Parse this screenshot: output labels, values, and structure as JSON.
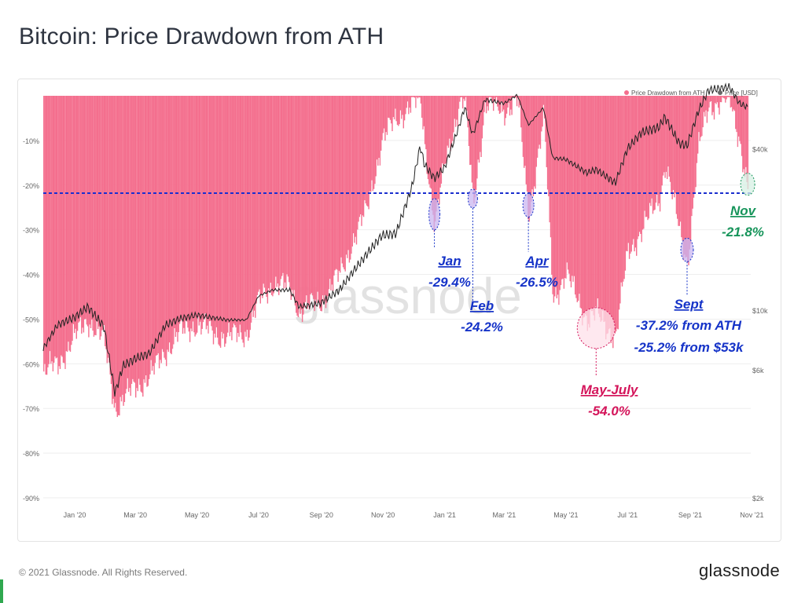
{
  "header": {
    "title": "Bitcoin: Price Drawdown from ATH"
  },
  "footer": {
    "copyright": "© 2021 Glassnode. All Rights Reserved.",
    "logo": "glassnode"
  },
  "watermark": "glassnode",
  "colors": {
    "drawdown": "#f46f8e",
    "price": "#222222",
    "reference_line": "#1a2ecf",
    "blue_text": "#1533c8",
    "red_text": "#d4145a",
    "green_text": "#16945a"
  },
  "chart_data": {
    "type": "area",
    "title": "Bitcoin: Price Drawdown from ATH",
    "legend": {
      "placement": "top-right",
      "items": [
        "Price Drawdown from ATH",
        "Price [USD]"
      ]
    },
    "x_tick_labels": [
      "Jan '20",
      "Mar '20",
      "May '20",
      "Jul '20",
      "Sep '20",
      "Nov '20",
      "Jan '21",
      "Mar '21",
      "May '21",
      "Jul '21",
      "Sep '21",
      "Nov '21"
    ],
    "y_left": {
      "ticks": [
        "-10%",
        "-20%",
        "-30%",
        "-40%",
        "-50%",
        "-60%",
        "-70%",
        "-80%",
        "-90%"
      ],
      "range": [
        -90,
        0
      ]
    },
    "y_right": {
      "scale": "log",
      "ticks": [
        "$40k",
        "$10k",
        "$6k",
        "$2k"
      ],
      "range": [
        2000,
        63000
      ]
    },
    "reference_line": {
      "value": -21.8,
      "style": "dashed"
    },
    "series": [
      {
        "name": "Price Drawdown from ATH",
        "unit": "%",
        "points": [
          [
            "2020-01-01",
            -62
          ],
          [
            "2020-01-15",
            -60
          ],
          [
            "2020-02-01",
            -54
          ],
          [
            "2020-02-14",
            -50
          ],
          [
            "2020-03-01",
            -55
          ],
          [
            "2020-03-12",
            -70
          ],
          [
            "2020-03-20",
            -68
          ],
          [
            "2020-04-01",
            -65
          ],
          [
            "2020-04-15",
            -63
          ],
          [
            "2020-05-01",
            -57
          ],
          [
            "2020-05-15",
            -53
          ],
          [
            "2020-06-01",
            -51
          ],
          [
            "2020-06-15",
            -53
          ],
          [
            "2020-07-01",
            -54
          ],
          [
            "2020-07-20",
            -53
          ],
          [
            "2020-08-01",
            -46
          ],
          [
            "2020-08-15",
            -42
          ],
          [
            "2020-09-01",
            -43
          ],
          [
            "2020-09-10",
            -48
          ],
          [
            "2020-10-01",
            -46
          ],
          [
            "2020-10-20",
            -40
          ],
          [
            "2020-11-01",
            -33
          ],
          [
            "2020-11-15",
            -26
          ],
          [
            "2020-12-01",
            -10
          ],
          [
            "2020-12-15",
            -5
          ],
          [
            "2020-12-31",
            -2
          ],
          [
            "2021-01-08",
            -1
          ],
          [
            "2021-01-12",
            -10
          ],
          [
            "2021-01-22",
            -29.4
          ],
          [
            "2021-02-01",
            -15
          ],
          [
            "2021-02-15",
            -2
          ],
          [
            "2021-02-21",
            -1
          ],
          [
            "2021-03-01",
            -24.2
          ],
          [
            "2021-03-13",
            -2
          ],
          [
            "2021-04-01",
            -3
          ],
          [
            "2021-04-14",
            -1
          ],
          [
            "2021-04-25",
            -26.5
          ],
          [
            "2021-05-10",
            -5
          ],
          [
            "2021-05-19",
            -45
          ],
          [
            "2021-06-01",
            -40
          ],
          [
            "2021-06-22",
            -50
          ],
          [
            "2021-07-01",
            -49
          ],
          [
            "2021-07-20",
            -54.0
          ],
          [
            "2021-08-01",
            -35
          ],
          [
            "2021-08-15",
            -30
          ],
          [
            "2021-09-01",
            -23
          ],
          [
            "2021-09-07",
            -15
          ],
          [
            "2021-09-21",
            -30
          ],
          [
            "2021-09-29",
            -37.2
          ],
          [
            "2021-10-10",
            -12
          ],
          [
            "2021-10-20",
            -2
          ],
          [
            "2021-11-10",
            -1
          ],
          [
            "2021-11-20",
            -10
          ],
          [
            "2021-11-28",
            -21.8
          ]
        ]
      },
      {
        "name": "Price [USD]",
        "unit": "USD",
        "points": [
          [
            "2020-01-01",
            7200
          ],
          [
            "2020-01-15",
            8800
          ],
          [
            "2020-02-01",
            9400
          ],
          [
            "2020-02-14",
            10300
          ],
          [
            "2020-03-01",
            8700
          ],
          [
            "2020-03-12",
            4900
          ],
          [
            "2020-03-20",
            6200
          ],
          [
            "2020-04-01",
            6600
          ],
          [
            "2020-04-15",
            6900
          ],
          [
            "2020-05-01",
            8800
          ],
          [
            "2020-05-15",
            9300
          ],
          [
            "2020-06-01",
            9600
          ],
          [
            "2020-06-15",
            9400
          ],
          [
            "2020-07-01",
            9200
          ],
          [
            "2020-07-20",
            9200
          ],
          [
            "2020-08-01",
            11300
          ],
          [
            "2020-08-15",
            11900
          ],
          [
            "2020-09-01",
            11900
          ],
          [
            "2020-09-10",
            10300
          ],
          [
            "2020-10-01",
            10600
          ],
          [
            "2020-10-20",
            11900
          ],
          [
            "2020-11-01",
            13700
          ],
          [
            "2020-11-15",
            16000
          ],
          [
            "2020-12-01",
            19000
          ],
          [
            "2020-12-15",
            19300
          ],
          [
            "2020-12-31",
            29000
          ],
          [
            "2021-01-08",
            41000
          ],
          [
            "2021-01-12",
            35000
          ],
          [
            "2021-01-22",
            31000
          ],
          [
            "2021-02-01",
            34000
          ],
          [
            "2021-02-15",
            48000
          ],
          [
            "2021-02-21",
            57000
          ],
          [
            "2021-03-01",
            45000
          ],
          [
            "2021-03-13",
            61000
          ],
          [
            "2021-04-01",
            59000
          ],
          [
            "2021-04-14",
            63500
          ],
          [
            "2021-04-25",
            49000
          ],
          [
            "2021-05-10",
            57000
          ],
          [
            "2021-05-19",
            37000
          ],
          [
            "2021-06-01",
            36500
          ],
          [
            "2021-06-22",
            32500
          ],
          [
            "2021-07-01",
            33500
          ],
          [
            "2021-07-20",
            29800
          ],
          [
            "2021-08-01",
            40000
          ],
          [
            "2021-08-15",
            46000
          ],
          [
            "2021-09-01",
            48000
          ],
          [
            "2021-09-07",
            52600
          ],
          [
            "2021-09-21",
            42000
          ],
          [
            "2021-09-29",
            41000
          ],
          [
            "2021-10-10",
            55000
          ],
          [
            "2021-10-20",
            66000
          ],
          [
            "2021-11-10",
            68000
          ],
          [
            "2021-11-20",
            59000
          ],
          [
            "2021-11-28",
            57000
          ]
        ]
      }
    ],
    "annotations": [
      {
        "id": "jan",
        "date": "2021-01-22",
        "value": -29.4,
        "label": "Jan",
        "detail": "-29.4%",
        "color": "blue"
      },
      {
        "id": "feb",
        "date": "2021-03-01",
        "value": -24.2,
        "label": "Feb",
        "detail": "-24.2%",
        "color": "blue"
      },
      {
        "id": "apr",
        "date": "2021-04-25",
        "value": -26.5,
        "label": "Apr",
        "detail": "-26.5%",
        "color": "blue"
      },
      {
        "id": "mayjuly",
        "date": "2021-07-01",
        "value": -54.0,
        "label": "May-July",
        "detail": "-54.0%",
        "color": "red"
      },
      {
        "id": "sept",
        "date": "2021-09-29",
        "value": -37.2,
        "label": "Sept",
        "detail": "-37.2% from ATH",
        "detail2": "-25.2% from $53k",
        "color": "blue"
      },
      {
        "id": "nov",
        "date": "2021-11-28",
        "value": -21.8,
        "label": "Nov",
        "detail": "-21.8%",
        "color": "green"
      }
    ]
  }
}
